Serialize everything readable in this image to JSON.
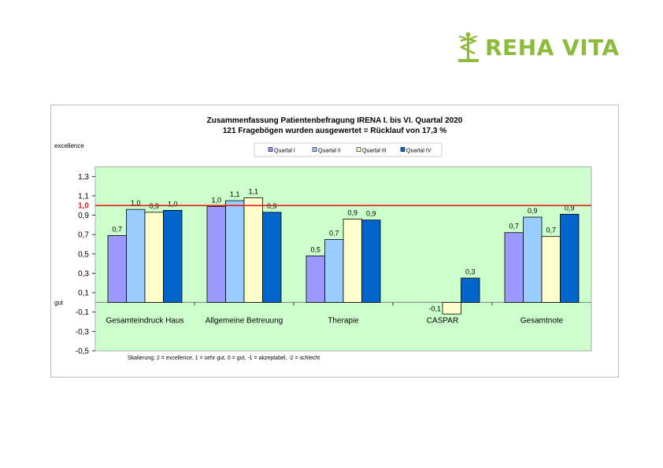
{
  "logo": {
    "text": "REHA VITA",
    "color": "#8cba3a"
  },
  "chart_data": {
    "type": "bar",
    "title": "Zusammenfassung Patientenbefragung IRENA I. bis VI. Quartal 2020",
    "subtitle": "121 Fragebögen wurden ausgewertet = Rücklauf von 17,3 %",
    "categories": [
      "Gesamteindruck Haus",
      "Allgemeine Betreuung",
      "Therapie",
      "CASPAR",
      "Gesamtnote"
    ],
    "series": [
      {
        "name": "Quartal I",
        "color": "#9999ff",
        "values": [
          0.69,
          0.99,
          0.48,
          null,
          0.72
        ],
        "labels": [
          "0,7",
          "1,0",
          "0,5",
          "",
          "0,7"
        ]
      },
      {
        "name": "Quartal II",
        "color": "#99ccff",
        "values": [
          0.96,
          1.05,
          0.65,
          null,
          0.88
        ],
        "labels": [
          "1,0",
          "1,1",
          "0,7",
          "",
          "0,9"
        ]
      },
      {
        "name": "Quartal III",
        "color": "#ffffcc",
        "values": [
          0.93,
          1.08,
          0.86,
          -0.12,
          0.68
        ],
        "labels": [
          "0,9",
          "1,1",
          "0,9",
          "-0,1",
          "0,7"
        ]
      },
      {
        "name": "Quartal IV",
        "color": "#0066cc",
        "values": [
          0.95,
          0.93,
          0.85,
          0.25,
          0.91
        ],
        "labels": [
          "1,0",
          "0,9",
          "0,9",
          "0,3",
          "0,9"
        ]
      }
    ],
    "y_ticks": [
      "1,3",
      "1,1",
      "0,9",
      "0,7",
      "0,5",
      "0,3",
      "0,1",
      "-0,1",
      "-0,3",
      "-0,5"
    ],
    "y_tick_values": [
      1.3,
      1.1,
      0.9,
      0.7,
      0.5,
      0.3,
      0.1,
      -0.1,
      -0.3,
      -0.5
    ],
    "ylim": [
      -0.5,
      1.4
    ],
    "reference_line": {
      "value": 1.0,
      "label": "1,0",
      "color": "#e31a1a"
    },
    "y_annotations": {
      "top": "excellence",
      "zero": "gut"
    },
    "plot_background": "#ccffcc",
    "legend_position": "top-center",
    "grid": false,
    "footnote": "Skalierung: 2 = excellence, 1 = sehr gut, 0 = gut, -1 = akzeptabel, -2 = schlecht"
  }
}
